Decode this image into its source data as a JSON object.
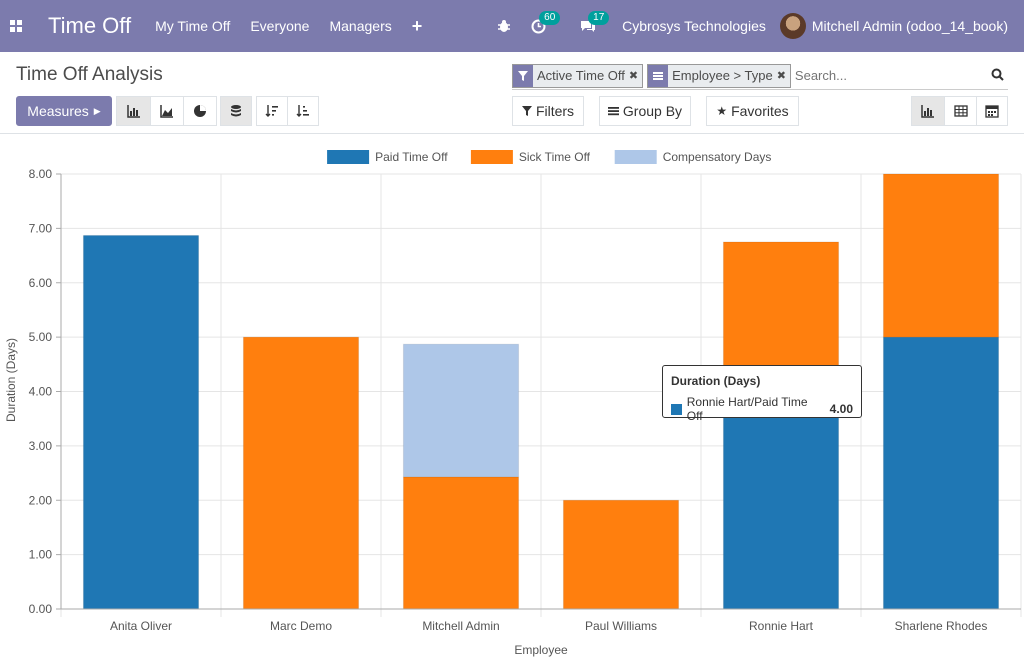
{
  "navbar": {
    "app_title": "Time Off",
    "menu": [
      "My Time Off",
      "Everyone",
      "Managers"
    ],
    "activity_count": "60",
    "message_count": "17",
    "company": "Cybrosys Technologies",
    "user": "Mitchell Admin (odoo_14_book)"
  },
  "control": {
    "breadcrumb": "Time Off Analysis",
    "facets": [
      "Active Time Off",
      "Employee > Type"
    ],
    "search_placeholder": "Search...",
    "measures_label": "Measures",
    "filters_label": "Filters",
    "group_by_label": "Group By",
    "favorites_label": "Favorites"
  },
  "colors": {
    "brand": "#7c7bad",
    "paid": "#1f77b4",
    "sick": "#ff7f0e",
    "compensatory": "#aec7e8"
  },
  "chart_data": {
    "type": "bar",
    "stacked": true,
    "xlabel": "Employee",
    "ylabel": "Duration (Days)",
    "ylim": [
      0,
      8
    ],
    "y_ticks": [
      "0.00",
      "1.00",
      "2.00",
      "3.00",
      "4.00",
      "5.00",
      "6.00",
      "7.00",
      "8.00"
    ],
    "categories": [
      "Anita Oliver",
      "Marc Demo",
      "Mitchell Admin",
      "Paul Williams",
      "Ronnie Hart",
      "Sharlene Rhodes"
    ],
    "series": [
      {
        "name": "Paid Time Off",
        "color": "#1f77b4",
        "values": [
          6.87,
          0,
          0,
          0,
          4.0,
          5.0
        ]
      },
      {
        "name": "Sick Time Off",
        "color": "#ff7f0e",
        "values": [
          0,
          5.0,
          2.43,
          2.0,
          2.75,
          3.0
        ]
      },
      {
        "name": "Compensatory Days",
        "color": "#aec7e8",
        "values": [
          0,
          0,
          2.44,
          0,
          0,
          0
        ]
      }
    ],
    "legend_position": "top-center",
    "grid": true,
    "tooltip": {
      "title": "Duration (Days)",
      "label": "Ronnie Hart/Paid Time Off",
      "value": "4.00"
    }
  }
}
